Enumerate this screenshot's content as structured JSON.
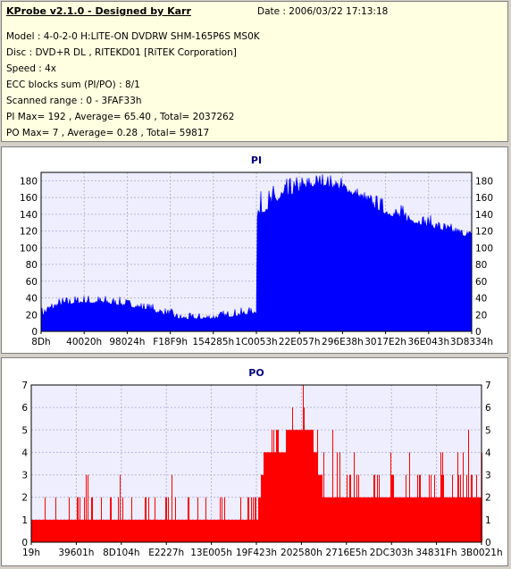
{
  "header": {
    "title": "KProbe v2.1.0 - Designed by Karr",
    "date": "Date : 2006/03/22 17:13:18",
    "lines": [
      "Model : 4-0-2-0 H:LITE-ON DVDRW SHM-165P6S MS0K",
      "Disc : DVD+R DL , RITEKD01 [RiTEK Corporation]",
      "Speed : 4x",
      "ECC blocks sum (PI/PO) : 8/1",
      "Scanned range : 0 - 3FAF33h",
      "PI Max= 192 , Average= 65.40 , Total= 2037262",
      "PO Max= 7 , Average= 0.28 , Total= 59817"
    ]
  },
  "colors": {
    "bars": "#ff0000",
    "pi_fill": "#0000ff",
    "plot_bg": "#eeeeff",
    "grid": "#b8b8d8"
  },
  "chart_data": [
    {
      "type": "area",
      "title": "PI",
      "xlabel": "",
      "ylabel": "",
      "ylim": [
        0,
        190
      ],
      "yticks": [
        0,
        20,
        40,
        60,
        80,
        100,
        120,
        140,
        160,
        180
      ],
      "x_tick_labels": [
        "8Dh",
        "40020h",
        "98024h",
        "F18F9h",
        "154285h",
        "1C0053h",
        "22E057h",
        "296E38h",
        "3017E2h",
        "36E043h",
        "3D8334h"
      ],
      "grid": true,
      "series": [
        {
          "x": [
            0,
            0.02,
            0.05,
            0.1,
            0.15,
            0.2,
            0.25,
            0.3,
            0.32,
            0.35,
            0.4,
            0.45,
            0.5,
            0.5,
            0.55,
            0.6,
            0.65,
            0.7,
            0.75,
            0.8,
            0.85,
            0.9,
            0.95,
            1.0
          ],
          "values": [
            18,
            25,
            32,
            34,
            33,
            30,
            25,
            18,
            15,
            14,
            15,
            18,
            22,
            135,
            155,
            168,
            175,
            170,
            155,
            140,
            132,
            125,
            118,
            112
          ],
          "peak": [
            30,
            38,
            42,
            45,
            44,
            40,
            35,
            28,
            22,
            22,
            24,
            28,
            30,
            165,
            180,
            188,
            192,
            185,
            170,
            160,
            150,
            140,
            130,
            122
          ]
        }
      ]
    },
    {
      "type": "bar",
      "title": "PO",
      "xlabel": "",
      "ylabel": "",
      "ylim": [
        0,
        7
      ],
      "yticks": [
        0,
        1,
        2,
        3,
        4,
        5,
        6,
        7
      ],
      "x_tick_labels": [
        "19h",
        "39601h",
        "8D104h",
        "E2227h",
        "13E005h",
        "19F423h",
        "202580h",
        "2716E5h",
        "2DC303h",
        "34831Fh",
        "3B0021h"
      ],
      "grid": true,
      "series": [
        {
          "x": [
            0,
            0.05,
            0.1,
            0.15,
            0.2,
            0.25,
            0.3,
            0.35,
            0.4,
            0.45,
            0.5,
            0.52,
            0.55,
            0.58,
            0.6,
            0.62,
            0.65,
            0.7,
            0.75,
            0.8,
            0.85,
            0.9,
            0.95,
            1.0
          ],
          "values": [
            1,
            1,
            1,
            1,
            1,
            1,
            1,
            1,
            1,
            1,
            1,
            4,
            4,
            5,
            5,
            5,
            2,
            2,
            2,
            2,
            2,
            2,
            2,
            2
          ],
          "peak": [
            2,
            3,
            4,
            2,
            3,
            2,
            3,
            2,
            2,
            3,
            2,
            5,
            6,
            7,
            7,
            7,
            5,
            5,
            4,
            4,
            4,
            4,
            6,
            5
          ]
        }
      ]
    }
  ]
}
